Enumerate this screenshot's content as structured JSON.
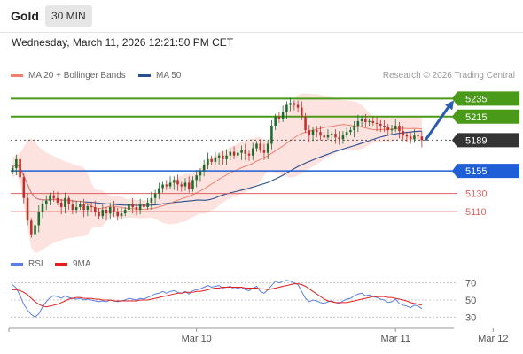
{
  "header": {
    "title": "Gold",
    "timeframe": "30 MIN"
  },
  "datetime": "Wednesday, March 11, 2026 12:21:50 PM CET",
  "legend": {
    "ma20": {
      "label": "MA 20 + Bollinger Bands",
      "color": "#f08070"
    },
    "ma50": {
      "label": "MA 50",
      "color": "#2a4f8f"
    },
    "rsi": {
      "label": "RSI",
      "color": "#5a7fe0"
    },
    "nine_ma": {
      "label": "9MA",
      "color": "#e02020"
    }
  },
  "credit": "Research © 2026 Trading Central",
  "colors": {
    "bull": "#1e6b2e",
    "bear": "#c0302a",
    "resistance": "#4a9a1a",
    "pivot": "#1e5fd8",
    "support": "#e06060",
    "current": "#333333"
  },
  "chart_data": {
    "type": "candlestick",
    "ylim": [
      5070,
      5250
    ],
    "levels": [
      {
        "label": "5235",
        "value": 5235,
        "kind": "resistance"
      },
      {
        "label": "5215",
        "value": 5215,
        "kind": "resistance"
      },
      {
        "label": "5189",
        "value": 5189,
        "kind": "current"
      },
      {
        "label": "5155",
        "value": 5155,
        "kind": "pivot"
      },
      {
        "label": "5130",
        "value": 5130,
        "kind": "support"
      },
      {
        "label": "5110",
        "value": 5110,
        "kind": "support"
      }
    ],
    "x_ticks": [
      "Mar 10",
      "Mar 11",
      "Mar 12"
    ],
    "x_tick_index": [
      49,
      102,
      128
    ],
    "candles_close": [
      5158,
      5168,
      5148,
      5125,
      5100,
      5085,
      5095,
      5110,
      5118,
      5122,
      5128,
      5125,
      5120,
      5115,
      5125,
      5118,
      5112,
      5115,
      5118,
      5112,
      5116,
      5115,
      5110,
      5105,
      5112,
      5108,
      5115,
      5110,
      5105,
      5108,
      5112,
      5118,
      5115,
      5112,
      5118,
      5115,
      5120,
      5125,
      5130,
      5136,
      5140,
      5138,
      5142,
      5145,
      5140,
      5138,
      5142,
      5135,
      5145,
      5150,
      5155,
      5162,
      5168,
      5165,
      5170,
      5172,
      5168,
      5172,
      5176,
      5172,
      5175,
      5178,
      5174,
      5172,
      5180,
      5185,
      5178,
      5175,
      5185,
      5205,
      5215,
      5212,
      5220,
      5228,
      5230,
      5228,
      5225,
      5215,
      5200,
      5195,
      5200,
      5198,
      5194,
      5192,
      5195,
      5196,
      5192,
      5190,
      5195,
      5198,
      5200,
      5205,
      5210,
      5212,
      5209,
      5210,
      5208,
      5207,
      5205,
      5204,
      5200,
      5201,
      5205,
      5199,
      5195,
      5193,
      5190,
      5194,
      5193,
      5189
    ],
    "rsi": {
      "levels": [
        70,
        50,
        30
      ],
      "ylim": [
        20,
        80
      ],
      "values": [
        68,
        64,
        55,
        45,
        38,
        33,
        30,
        34,
        42,
        48,
        53,
        55,
        54,
        52,
        55,
        53,
        52,
        51,
        52,
        50,
        51,
        50,
        49,
        48,
        49,
        48,
        50,
        49,
        48,
        49,
        50,
        52,
        51,
        50,
        52,
        51,
        53,
        55,
        57,
        58,
        60,
        58,
        60,
        61,
        59,
        58,
        60,
        57,
        61,
        62,
        63,
        65,
        67,
        65,
        66,
        67,
        64,
        65,
        66,
        63,
        64,
        65,
        62,
        61,
        64,
        66,
        60,
        58,
        62,
        67,
        72,
        70,
        72,
        73,
        72,
        70,
        68,
        60,
        52,
        48,
        50,
        49,
        47,
        46,
        48,
        49,
        47,
        46,
        49,
        51,
        52,
        55,
        57,
        58,
        55,
        56,
        54,
        53,
        51,
        50,
        47,
        48,
        51,
        46,
        44,
        43,
        41,
        44,
        43,
        40
      ],
      "ma9": [
        62,
        62,
        61,
        59,
        56,
        52,
        48,
        45,
        43,
        42,
        43,
        44,
        45,
        47,
        49,
        51,
        52,
        53,
        53,
        52,
        52,
        52,
        51,
        51,
        50,
        50,
        50,
        49,
        49,
        49,
        49,
        49,
        49,
        49,
        50,
        50,
        50,
        51,
        52,
        53,
        54,
        55,
        56,
        57,
        58,
        58,
        59,
        59,
        59,
        60,
        60,
        61,
        62,
        63,
        64,
        64,
        65,
        65,
        65,
        65,
        65,
        65,
        64,
        64,
        64,
        64,
        63,
        63,
        62,
        63,
        64,
        65,
        66,
        67,
        68,
        69,
        69,
        68,
        66,
        63,
        60,
        57,
        54,
        51,
        49,
        48,
        47,
        47,
        47,
        47,
        48,
        49,
        50,
        51,
        52,
        53,
        54,
        54,
        54,
        54,
        53,
        53,
        52,
        51,
        50,
        49,
        47,
        46,
        45,
        44
      ],
      "left_labels": {
        "rsi": "RSI",
        "ma9": "9MA"
      }
    }
  }
}
